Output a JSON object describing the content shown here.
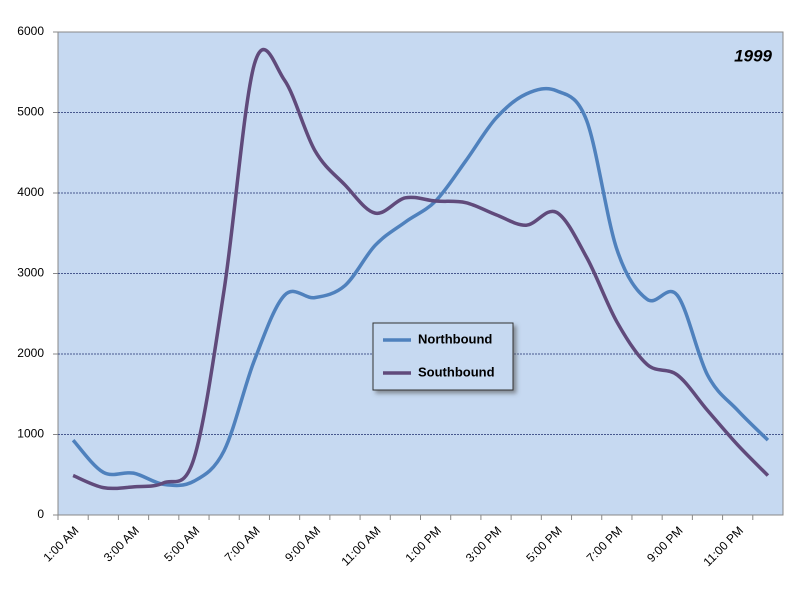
{
  "chart_data": {
    "type": "line",
    "annotation": "1999",
    "categories": [
      "1:00 AM",
      null,
      "3:00 AM",
      null,
      "5:00 AM",
      null,
      "7:00 AM",
      null,
      "9:00 AM",
      null,
      "11:00 AM",
      null,
      "1:00 PM",
      null,
      "3:00 PM",
      null,
      "5:00 PM",
      null,
      "7:00 PM",
      null,
      "9:00 PM",
      null,
      "11:00 PM",
      null
    ],
    "series": [
      {
        "name": "Northbound",
        "color": "#4f81bd",
        "values": [
          930,
          530,
          520,
          380,
          420,
          800,
          1920,
          2730,
          2700,
          2850,
          3350,
          3640,
          3900,
          4400,
          4930,
          5230,
          5270,
          4900,
          3300,
          2680,
          2730,
          1740,
          1300,
          930
        ]
      },
      {
        "name": "Southbound",
        "color": "#604a7b",
        "values": [
          490,
          340,
          350,
          400,
          700,
          2800,
          5600,
          5400,
          4530,
          4100,
          3750,
          3940,
          3900,
          3880,
          3730,
          3600,
          3760,
          3200,
          2400,
          1870,
          1740,
          1300,
          870,
          490
        ]
      }
    ],
    "ylim": [
      0,
      6000
    ],
    "yticks": [
      0,
      1000,
      2000,
      3000,
      4000,
      5000,
      6000
    ],
    "grid": true
  }
}
